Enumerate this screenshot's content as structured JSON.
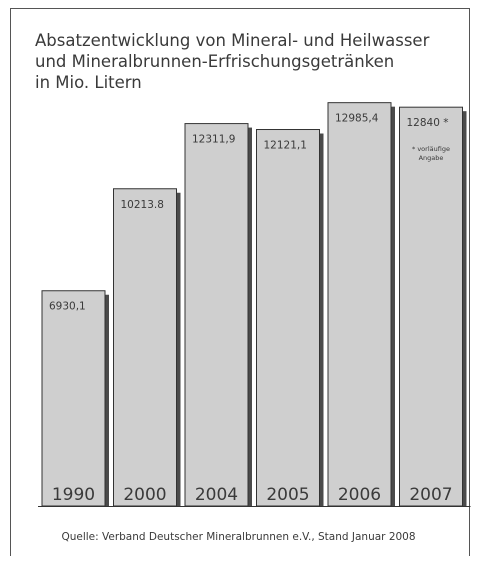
{
  "chart_data": {
    "type": "bar",
    "title_lines": [
      "Absatzentwicklung von Mineral- und Heilwasser",
      "und Mineralbrunnen-Erfrischungsgetränken",
      "in Mio. Litern"
    ],
    "categories": [
      "1990",
      "2000",
      "2004",
      "2005",
      "2006",
      "2007"
    ],
    "values": [
      6930.1,
      10213.8,
      12311.9,
      12121.1,
      12985.4,
      12840
    ],
    "value_labels": [
      "6930,1",
      "10213.8",
      "12311,9",
      "12121,1",
      "12985,4",
      "12840 *"
    ],
    "footnote": {
      "category": "2007",
      "lines": [
        "* vorläufige",
        "Angabe"
      ]
    },
    "ylim": [
      0,
      13200
    ],
    "grid": false,
    "source": "Quelle: Verband Deutscher Mineralbrunnen e.V., Stand Januar 2008",
    "colors": {
      "bar_fill": "#cfcfcf",
      "bar_shadow": "#4a4a4a",
      "bar_border": "#333333",
      "text": "#3a3a3a"
    }
  }
}
